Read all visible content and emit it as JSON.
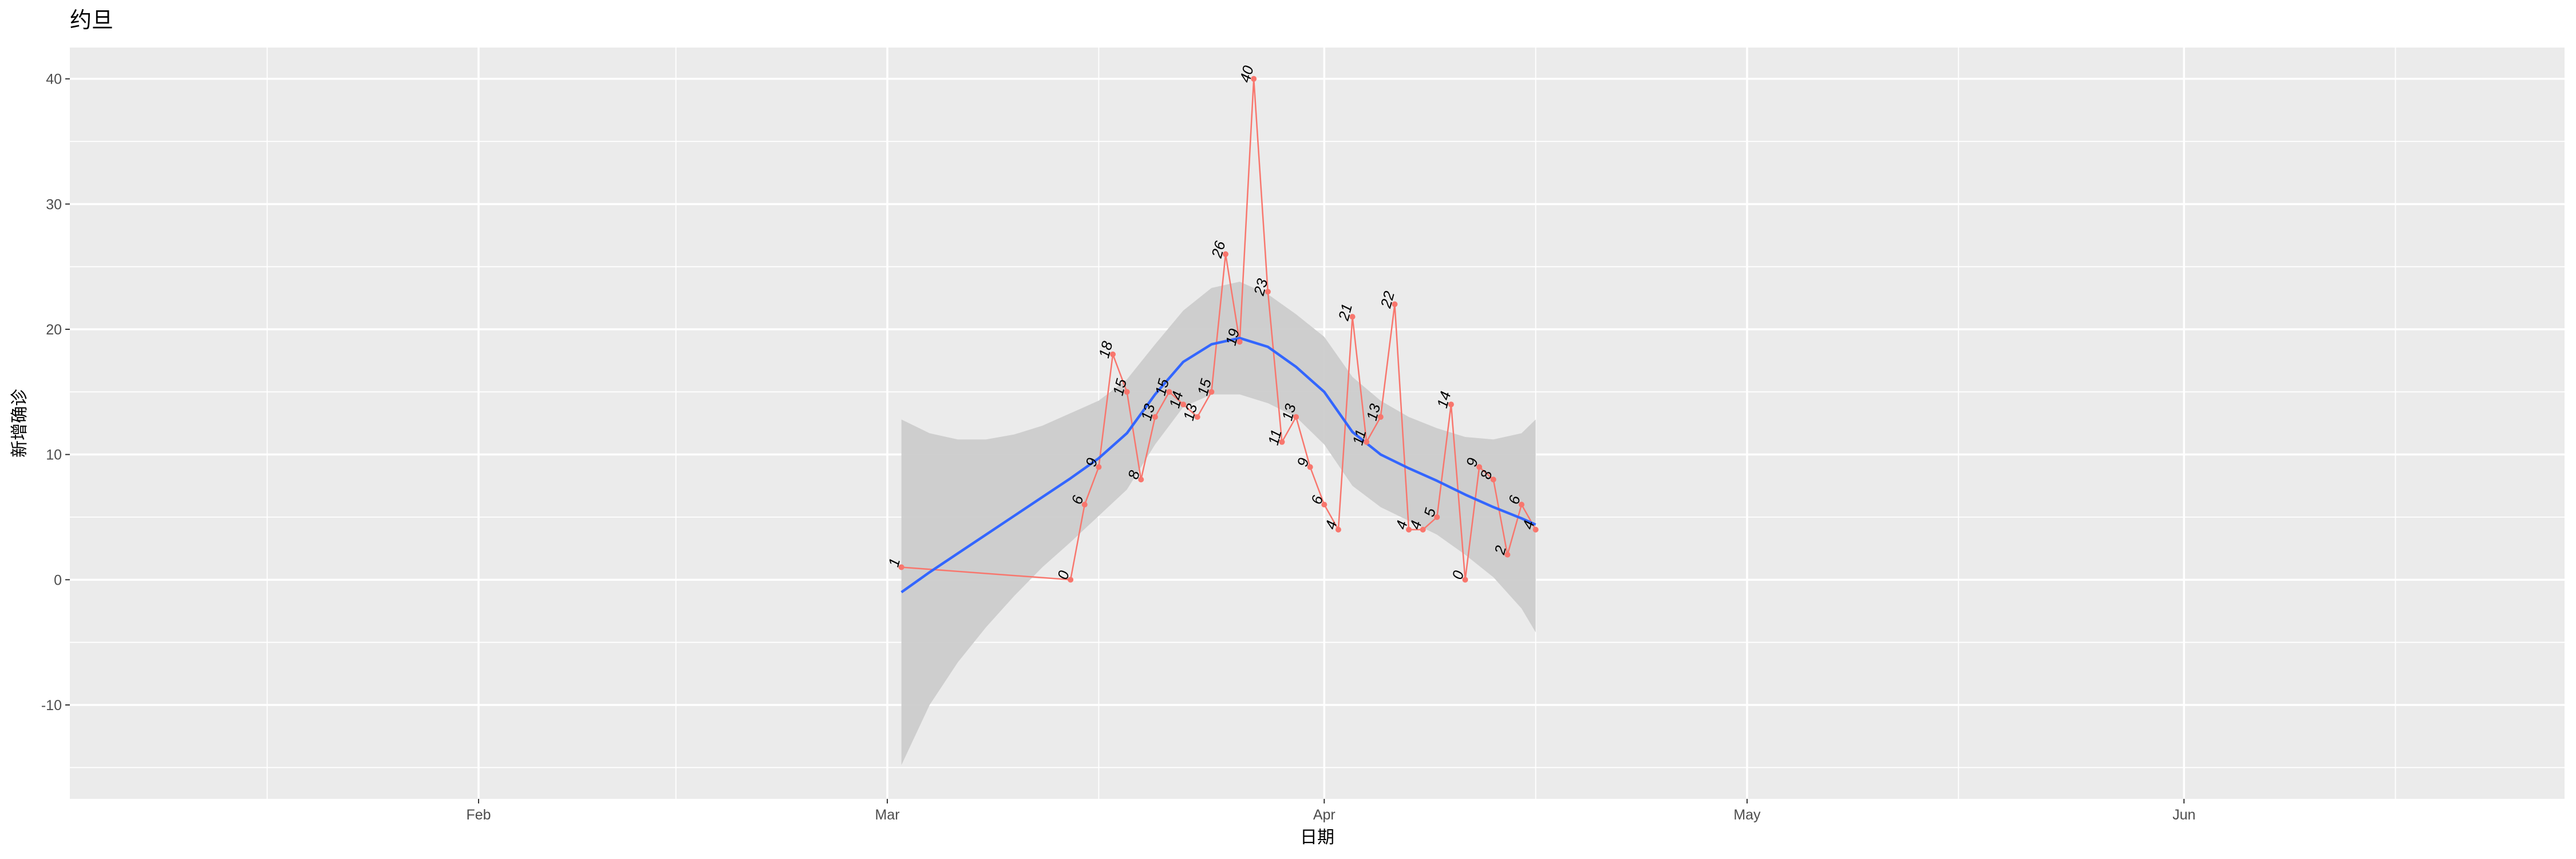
{
  "chart_data": {
    "type": "line",
    "title": "约旦",
    "xlabel": "日期",
    "ylabel": "新增确诊",
    "x_range": [
      "2020-01-03",
      "2020-06-28"
    ],
    "ylim": [
      -17.5,
      42.5
    ],
    "y_ticks": [
      -10,
      0,
      10,
      20,
      30,
      40
    ],
    "x_ticks": [
      {
        "date": "2020-02-01",
        "label": "Feb"
      },
      {
        "date": "2020-03-01",
        "label": "Mar"
      },
      {
        "date": "2020-04-01",
        "label": "Apr"
      },
      {
        "date": "2020-05-01",
        "label": "May"
      },
      {
        "date": "2020-06-01",
        "label": "Jun"
      }
    ],
    "grid": true,
    "series": [
      {
        "line_color": "#f8766d",
        "points": [
          {
            "x": "2020-03-02",
            "y": 1
          },
          {
            "x": "2020-03-14",
            "y": 0
          },
          {
            "x": "2020-03-15",
            "y": 6
          },
          {
            "x": "2020-03-16",
            "y": 9
          },
          {
            "x": "2020-03-17",
            "y": 18
          },
          {
            "x": "2020-03-18",
            "y": 15
          },
          {
            "x": "2020-03-19",
            "y": 8
          },
          {
            "x": "2020-03-20",
            "y": 13
          },
          {
            "x": "2020-03-21",
            "y": 15
          },
          {
            "x": "2020-03-22",
            "y": 14
          },
          {
            "x": "2020-03-23",
            "y": 13
          },
          {
            "x": "2020-03-24",
            "y": 15
          },
          {
            "x": "2020-03-25",
            "y": 26
          },
          {
            "x": "2020-03-26",
            "y": 19
          },
          {
            "x": "2020-03-27",
            "y": 40
          },
          {
            "x": "2020-03-28",
            "y": 23
          },
          {
            "x": "2020-03-29",
            "y": 11
          },
          {
            "x": "2020-03-30",
            "y": 13
          },
          {
            "x": "2020-03-31",
            "y": 9
          },
          {
            "x": "2020-04-01",
            "y": 6
          },
          {
            "x": "2020-04-02",
            "y": 4
          },
          {
            "x": "2020-04-03",
            "y": 21
          },
          {
            "x": "2020-04-04",
            "y": 11
          },
          {
            "x": "2020-04-05",
            "y": 13
          },
          {
            "x": "2020-04-06",
            "y": 22
          },
          {
            "x": "2020-04-07",
            "y": 4
          },
          {
            "x": "2020-04-08",
            "y": 4
          },
          {
            "x": "2020-04-09",
            "y": 5
          },
          {
            "x": "2020-04-10",
            "y": 14
          },
          {
            "x": "2020-04-11",
            "y": 0
          },
          {
            "x": "2020-04-12",
            "y": 9
          },
          {
            "x": "2020-04-13",
            "y": 8
          },
          {
            "x": "2020-04-14",
            "y": 2
          },
          {
            "x": "2020-04-15",
            "y": 6
          },
          {
            "x": "2020-04-16",
            "y": 4
          }
        ]
      }
    ],
    "smooth": {
      "method": "loess",
      "line_color": "#3366ff",
      "band_color": "#cccccc",
      "points": [
        {
          "x": "2020-03-02",
          "y": -1.0,
          "lo": -14.8,
          "hi": 12.8
        },
        {
          "x": "2020-03-04",
          "y": 0.6,
          "lo": -10.0,
          "hi": 11.7
        },
        {
          "x": "2020-03-06",
          "y": 2.1,
          "lo": -6.6,
          "hi": 11.2
        },
        {
          "x": "2020-03-08",
          "y": 3.6,
          "lo": -3.8,
          "hi": 11.2
        },
        {
          "x": "2020-03-10",
          "y": 5.1,
          "lo": -1.3,
          "hi": 11.6
        },
        {
          "x": "2020-03-12",
          "y": 6.6,
          "lo": 1.0,
          "hi": 12.3
        },
        {
          "x": "2020-03-14",
          "y": 8.1,
          "lo": 3.0,
          "hi": 13.3
        },
        {
          "x": "2020-03-16",
          "y": 9.7,
          "lo": 5.1,
          "hi": 14.3
        },
        {
          "x": "2020-03-18",
          "y": 11.7,
          "lo": 7.2,
          "hi": 16.0
        },
        {
          "x": "2020-03-20",
          "y": 14.8,
          "lo": 10.8,
          "hi": 18.8
        },
        {
          "x": "2020-03-22",
          "y": 17.4,
          "lo": 13.8,
          "hi": 21.5
        },
        {
          "x": "2020-03-24",
          "y": 18.8,
          "lo": 14.8,
          "hi": 23.3
        },
        {
          "x": "2020-03-26",
          "y": 19.3,
          "lo": 14.8,
          "hi": 23.8
        },
        {
          "x": "2020-03-28",
          "y": 18.6,
          "lo": 14.1,
          "hi": 22.8
        },
        {
          "x": "2020-03-30",
          "y": 17.0,
          "lo": 13.0,
          "hi": 21.2
        },
        {
          "x": "2020-04-01",
          "y": 15.0,
          "lo": 10.8,
          "hi": 19.4
        },
        {
          "x": "2020-04-03",
          "y": 11.8,
          "lo": 7.5,
          "hi": 16.2
        },
        {
          "x": "2020-04-05",
          "y": 10.0,
          "lo": 5.8,
          "hi": 14.3
        },
        {
          "x": "2020-04-07",
          "y": 8.9,
          "lo": 4.7,
          "hi": 13.0
        },
        {
          "x": "2020-04-09",
          "y": 7.9,
          "lo": 3.6,
          "hi": 12.1
        },
        {
          "x": "2020-04-11",
          "y": 6.8,
          "lo": 2.0,
          "hi": 11.4
        },
        {
          "x": "2020-04-13",
          "y": 5.8,
          "lo": 0.2,
          "hi": 11.2
        },
        {
          "x": "2020-04-15",
          "y": 4.9,
          "lo": -2.3,
          "hi": 11.7
        },
        {
          "x": "2020-04-16",
          "y": 4.4,
          "lo": -4.2,
          "hi": 12.8
        }
      ]
    }
  }
}
